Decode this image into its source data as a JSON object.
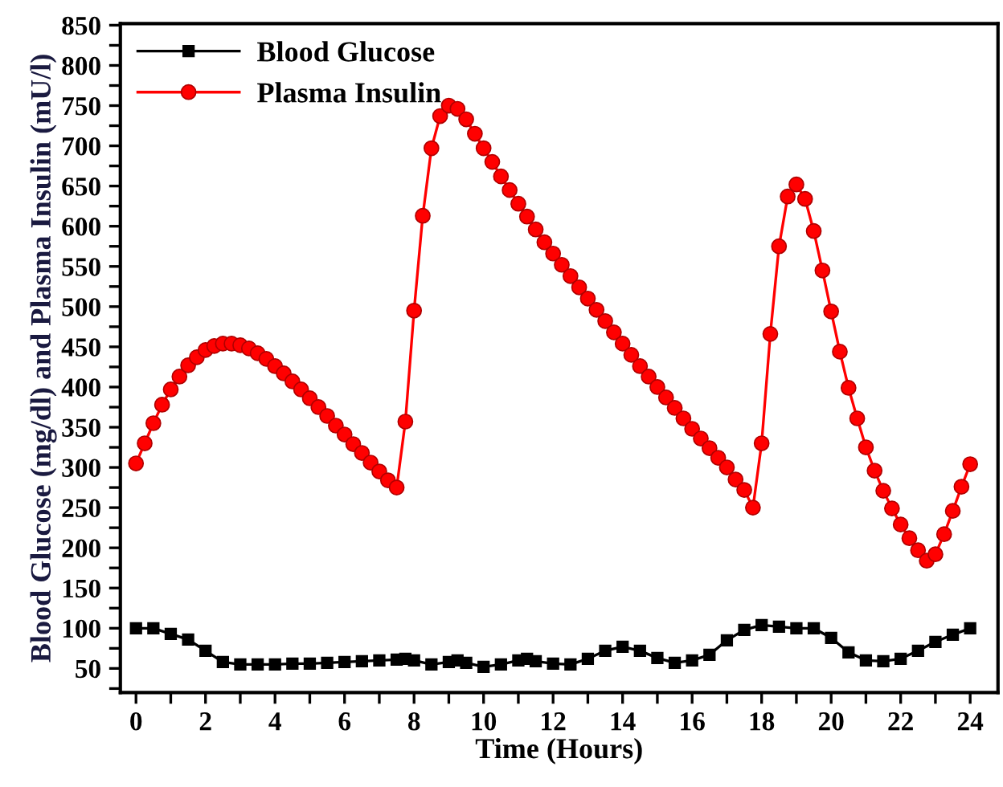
{
  "chart_data": {
    "type": "line",
    "xlabel": "Time (Hours)",
    "ylabel": "Blood Glucose (mg/dl) and Plasma Insulin (mU/l)",
    "xlim": [
      -0.45,
      24.8
    ],
    "ylim": [
      20,
      852
    ],
    "xticks": [
      0,
      {
        "value": 1,
        "label": null
      },
      2,
      {
        "value": 3,
        "label": null
      },
      4,
      {
        "value": 5,
        "label": null
      },
      6,
      {
        "value": 7,
        "label": null
      },
      8,
      {
        "value": 9,
        "label": null
      },
      10,
      {
        "value": 11,
        "label": null
      },
      12,
      {
        "value": 13,
        "label": null
      },
      14,
      {
        "value": 15,
        "label": null
      },
      16,
      {
        "value": 17,
        "label": null
      },
      18,
      {
        "value": 19,
        "label": null
      },
      20,
      {
        "value": 21,
        "label": null
      },
      22,
      {
        "value": 23,
        "label": null
      },
      24
    ],
    "yticks": [
      {
        "value": 25,
        "label": null
      },
      50,
      {
        "value": 75,
        "label": null
      },
      100,
      {
        "value": 125,
        "label": null
      },
      150,
      {
        "value": 175,
        "label": null
      },
      200,
      {
        "value": 225,
        "label": null
      },
      250,
      {
        "value": 275,
        "label": null
      },
      300,
      {
        "value": 325,
        "label": null
      },
      350,
      {
        "value": 375,
        "label": null
      },
      400,
      {
        "value": 425,
        "label": null
      },
      450,
      {
        "value": 475,
        "label": null
      },
      500,
      {
        "value": 525,
        "label": null
      },
      550,
      {
        "value": 575,
        "label": null
      },
      600,
      {
        "value": 625,
        "label": null
      },
      650,
      {
        "value": 675,
        "label": null
      },
      700,
      {
        "value": 725,
        "label": null
      },
      750,
      {
        "value": 775,
        "label": null
      },
      800,
      {
        "value": 825,
        "label": null
      },
      850
    ],
    "grid": false,
    "legend": "top left",
    "line_style": "solid",
    "series": [
      {
        "name": "Blood Glucose",
        "color": "#000000",
        "marker": "square",
        "x": [
          0,
          0.5,
          1,
          1.5,
          2,
          2.5,
          3,
          3.5,
          4,
          4.5,
          5,
          5.5,
          6,
          6.5,
          7,
          7.5,
          7.75,
          8,
          8.5,
          9,
          9.25,
          9.5,
          10,
          10.5,
          11,
          11.25,
          11.5,
          12,
          12.5,
          13,
          13.5,
          14,
          14.5,
          15,
          15.5,
          16,
          16.5,
          17,
          17.5,
          18,
          18.5,
          19,
          19.5,
          20,
          20.5,
          21,
          21.5,
          22,
          22.5,
          23,
          23.5,
          24
        ],
        "values": [
          100,
          100,
          93,
          86,
          72,
          58,
          55,
          55,
          55,
          56,
          56,
          57,
          58,
          59,
          60,
          61,
          62,
          60,
          55,
          58,
          60,
          57,
          52,
          55,
          60,
          62,
          59,
          56,
          55,
          62,
          72,
          77,
          72,
          63,
          57,
          60,
          67,
          85,
          98,
          104,
          102,
          100,
          100,
          88,
          70,
          60,
          59,
          62,
          72,
          83,
          92,
          100
        ]
      },
      {
        "name": "Plasma Insulin",
        "color": "#ff0000",
        "marker": "circle",
        "x": [
          0,
          0.25,
          0.5,
          0.75,
          1,
          1.25,
          1.5,
          1.75,
          2,
          2.25,
          2.5,
          2.75,
          3,
          3.25,
          3.5,
          3.75,
          4,
          4.25,
          4.5,
          4.75,
          5,
          5.25,
          5.5,
          5.75,
          6,
          6.25,
          6.5,
          6.75,
          7,
          7.25,
          7.5,
          7.75,
          8,
          8.25,
          8.5,
          8.75,
          9,
          9.25,
          9.5,
          9.75,
          10,
          10.25,
          10.5,
          10.75,
          11,
          11.25,
          11.5,
          11.75,
          12,
          12.25,
          12.5,
          12.75,
          13,
          13.25,
          13.5,
          13.75,
          14,
          14.25,
          14.5,
          14.75,
          15,
          15.25,
          15.5,
          15.75,
          16,
          16.25,
          16.5,
          16.75,
          17,
          17.25,
          17.5,
          17.75,
          18,
          18.25,
          18.5,
          18.75,
          19,
          19.25,
          19.5,
          19.75,
          20,
          20.25,
          20.5,
          20.75,
          21,
          21.25,
          21.5,
          21.75,
          22,
          22.25,
          22.5,
          22.75,
          23,
          23.25,
          23.5,
          23.75,
          24
        ],
        "values": [
          305,
          330,
          355,
          378,
          397,
          413,
          427,
          437,
          446,
          451,
          454,
          454,
          452,
          448,
          442,
          435,
          426,
          417,
          407,
          397,
          386,
          375,
          364,
          352,
          341,
          329,
          318,
          306,
          295,
          284,
          275,
          357,
          495,
          613,
          697,
          737,
          750,
          746,
          733,
          715,
          697,
          680,
          662,
          645,
          628,
          612,
          596,
          580,
          566,
          552,
          538,
          524,
          510,
          496,
          482,
          468,
          454,
          440,
          426,
          413,
          400,
          387,
          374,
          361,
          348,
          336,
          324,
          312,
          300,
          285,
          272,
          250,
          330,
          466,
          575,
          637,
          652,
          634,
          594,
          545,
          494,
          444,
          399,
          361,
          325,
          296,
          271,
          249,
          229,
          212,
          197,
          184,
          192,
          217,
          246,
          276,
          304
        ]
      }
    ]
  }
}
